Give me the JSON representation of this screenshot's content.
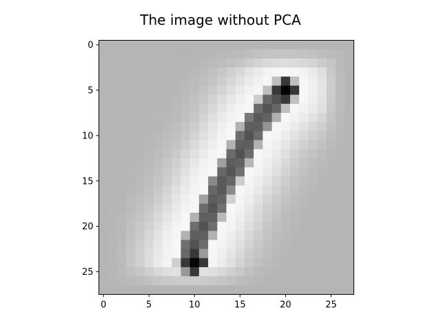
{
  "chart_data": {
    "type": "heatmap",
    "title": "The image without PCA",
    "colormap": "gray",
    "rows": 28,
    "cols": 28,
    "xlim": [
      -0.5,
      27.5
    ],
    "ylim": [
      27.5,
      -0.5
    ],
    "xticks": [
      0,
      5,
      10,
      15,
      20,
      25
    ],
    "yticks": [
      0,
      5,
      10,
      15,
      20,
      25
    ],
    "stroke": {
      "description": "dark diagonal digit stroke",
      "control_points": [
        [
          20,
          5
        ],
        [
          18.5,
          6.5
        ],
        [
          16.5,
          9
        ],
        [
          15,
          12
        ],
        [
          13,
          15.5
        ],
        [
          11.5,
          19
        ],
        [
          10,
          22
        ],
        [
          9.5,
          24
        ]
      ],
      "darkest_cells": [
        [
          20,
          5
        ],
        [
          10,
          24
        ]
      ]
    },
    "background_level": 0.71,
    "halo_level": 0.97
  }
}
